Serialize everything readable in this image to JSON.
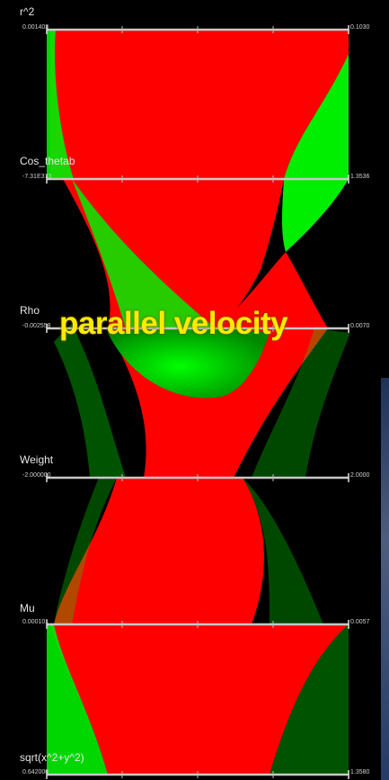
{
  "chart_data": {
    "type": "parallel-coordinates",
    "overlay_title": "parallel velocity",
    "axes": [
      {
        "name": "r^2",
        "min": "0.001403",
        "max": "0.1030"
      },
      {
        "name": "Cos_thetab",
        "min": "-7.31E373",
        "max": "1.3536"
      },
      {
        "name": "Rho",
        "min": "-0.002558",
        "max": "0.0070"
      },
      {
        "name": "Weight",
        "min": "-2.000000",
        "max": "2.0000"
      },
      {
        "name": "Mu",
        "min": "0.000101",
        "max": "0.0057"
      },
      {
        "name": "sqrt(x^2+y^2)",
        "min": "0.642000",
        "max": "1.3580"
      }
    ],
    "series": [
      {
        "name": "",
        "color": "#00ee00"
      },
      {
        "name": "",
        "color": "#ff0000"
      }
    ]
  }
}
